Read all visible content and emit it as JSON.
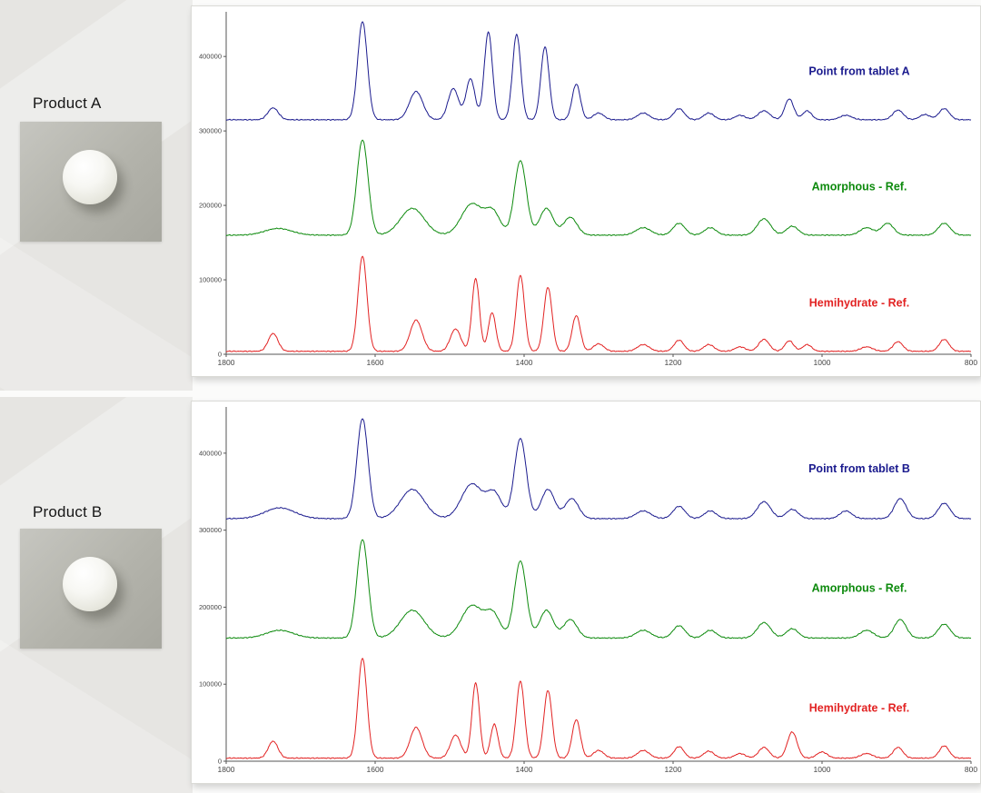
{
  "panels": [
    {
      "product_label": "Product A"
    },
    {
      "product_label": "Product B"
    }
  ],
  "chart_data": [
    {
      "type": "line",
      "title": "",
      "xlabel": "",
      "ylabel": "",
      "x_axis_reversed": true,
      "xlim": [
        1800,
        800
      ],
      "ylim": [
        0,
        460000
      ],
      "x_ticks": [
        1800,
        1600,
        1400,
        1200,
        1000,
        800
      ],
      "y_ticks": [
        0,
        100000,
        200000,
        300000,
        400000
      ],
      "grid": false,
      "legend_position": "inline-right",
      "series": [
        {
          "name": "Point from tablet A",
          "color": "#1b1b8e",
          "baseline": 315000,
          "peaks": [
            [
              1737,
              16000,
              7
            ],
            [
              1617,
              132000,
              6.5
            ],
            [
              1545,
              38000,
              9
            ],
            [
              1495,
              42000,
              7
            ],
            [
              1472,
              55000,
              6
            ],
            [
              1448,
              118000,
              5.5
            ],
            [
              1410,
              115000,
              5.5
            ],
            [
              1372,
              98000,
              5.5
            ],
            [
              1330,
              48000,
              5.5
            ],
            [
              1300,
              9000,
              7
            ],
            [
              1240,
              9000,
              8
            ],
            [
              1192,
              15000,
              7
            ],
            [
              1152,
              9000,
              7
            ],
            [
              1110,
              6000,
              7
            ],
            [
              1078,
              12000,
              8
            ],
            [
              1044,
              28000,
              6
            ],
            [
              1020,
              12000,
              6
            ],
            [
              968,
              6000,
              8
            ],
            [
              898,
              13000,
              7
            ],
            [
              862,
              7000,
              7
            ],
            [
              836,
              15000,
              7
            ]
          ]
        },
        {
          "name": "Amorphous - Ref.",
          "color": "#0d8a0d",
          "baseline": 160000,
          "peaks": [
            [
              1730,
              9000,
              18
            ],
            [
              1617,
              128000,
              7.5
            ],
            [
              1550,
              36000,
              16
            ],
            [
              1470,
              42000,
              14
            ],
            [
              1442,
              30000,
              10
            ],
            [
              1405,
              100000,
              8
            ],
            [
              1370,
              36000,
              9
            ],
            [
              1338,
              24000,
              9
            ],
            [
              1240,
              10000,
              10
            ],
            [
              1192,
              16000,
              8
            ],
            [
              1150,
              10000,
              8
            ],
            [
              1078,
              22000,
              9
            ],
            [
              1040,
              12000,
              8
            ],
            [
              940,
              10000,
              9
            ],
            [
              912,
              16000,
              8
            ],
            [
              836,
              16000,
              8
            ]
          ]
        },
        {
          "name": "Hemihydrate - Ref.",
          "color": "#e22222",
          "baseline": 4000,
          "peaks": [
            [
              1737,
              24000,
              6.5
            ],
            [
              1617,
              128000,
              6
            ],
            [
              1545,
              42000,
              8
            ],
            [
              1492,
              30000,
              7
            ],
            [
              1465,
              98000,
              5
            ],
            [
              1443,
              52000,
              5
            ],
            [
              1405,
              102000,
              5.5
            ],
            [
              1368,
              86000,
              5.5
            ],
            [
              1330,
              48000,
              5.5
            ],
            [
              1300,
              10000,
              7
            ],
            [
              1240,
              9000,
              8
            ],
            [
              1192,
              15000,
              6.5
            ],
            [
              1152,
              9000,
              7
            ],
            [
              1110,
              6000,
              7
            ],
            [
              1078,
              16000,
              7
            ],
            [
              1044,
              14000,
              6
            ],
            [
              1020,
              9000,
              6
            ],
            [
              940,
              6000,
              8
            ],
            [
              898,
              13000,
              6.5
            ],
            [
              836,
              16000,
              6.5
            ]
          ]
        }
      ]
    },
    {
      "type": "line",
      "title": "",
      "xlabel": "",
      "ylabel": "",
      "x_axis_reversed": true,
      "xlim": [
        1800,
        800
      ],
      "ylim": [
        0,
        460000
      ],
      "x_ticks": [
        1800,
        1600,
        1400,
        1200,
        1000,
        800
      ],
      "y_ticks": [
        0,
        100000,
        200000,
        300000,
        400000
      ],
      "grid": false,
      "legend_position": "inline-right",
      "series": [
        {
          "name": "Point from tablet B",
          "color": "#1b1b8e",
          "baseline": 315000,
          "peaks": [
            [
              1728,
              14000,
              20
            ],
            [
              1617,
              130000,
              7.5
            ],
            [
              1550,
              38000,
              16
            ],
            [
              1470,
              45000,
              14
            ],
            [
              1440,
              32000,
              10
            ],
            [
              1405,
              104000,
              8
            ],
            [
              1368,
              38000,
              9
            ],
            [
              1336,
              26000,
              9
            ],
            [
              1240,
              10000,
              10
            ],
            [
              1192,
              16000,
              8
            ],
            [
              1150,
              10000,
              8
            ],
            [
              1078,
              22000,
              9
            ],
            [
              1040,
              12000,
              8
            ],
            [
              968,
              10000,
              8
            ],
            [
              895,
              26000,
              8
            ],
            [
              836,
              20000,
              8
            ]
          ]
        },
        {
          "name": "Amorphous - Ref.",
          "color": "#0d8a0d",
          "baseline": 160000,
          "peaks": [
            [
              1728,
              10000,
              18
            ],
            [
              1617,
              128000,
              7.5
            ],
            [
              1550,
              36000,
              16
            ],
            [
              1470,
              42000,
              14
            ],
            [
              1442,
              30000,
              10
            ],
            [
              1405,
              100000,
              8
            ],
            [
              1370,
              36000,
              9
            ],
            [
              1338,
              24000,
              9
            ],
            [
              1240,
              10000,
              10
            ],
            [
              1192,
              16000,
              8
            ],
            [
              1150,
              10000,
              8
            ],
            [
              1078,
              20000,
              9
            ],
            [
              1040,
              12000,
              8
            ],
            [
              940,
              10000,
              9
            ],
            [
              895,
              24000,
              8
            ],
            [
              836,
              18000,
              8
            ]
          ]
        },
        {
          "name": "Hemihydrate - Ref.",
          "color": "#e22222",
          "baseline": 4000,
          "peaks": [
            [
              1737,
              22000,
              6.5
            ],
            [
              1617,
              130000,
              6
            ],
            [
              1545,
              40000,
              8
            ],
            [
              1492,
              30000,
              7
            ],
            [
              1465,
              98000,
              5
            ],
            [
              1440,
              44000,
              5
            ],
            [
              1405,
              100000,
              5.5
            ],
            [
              1368,
              88000,
              5.5
            ],
            [
              1330,
              50000,
              5.5
            ],
            [
              1300,
              10000,
              7
            ],
            [
              1240,
              10000,
              8
            ],
            [
              1192,
              15000,
              6.5
            ],
            [
              1152,
              9000,
              7
            ],
            [
              1110,
              6000,
              7
            ],
            [
              1078,
              14000,
              7
            ],
            [
              1040,
              34000,
              6.5
            ],
            [
              1000,
              8000,
              7
            ],
            [
              940,
              6000,
              8
            ],
            [
              898,
              14000,
              6.5
            ],
            [
              836,
              16000,
              6.5
            ]
          ]
        }
      ]
    }
  ]
}
